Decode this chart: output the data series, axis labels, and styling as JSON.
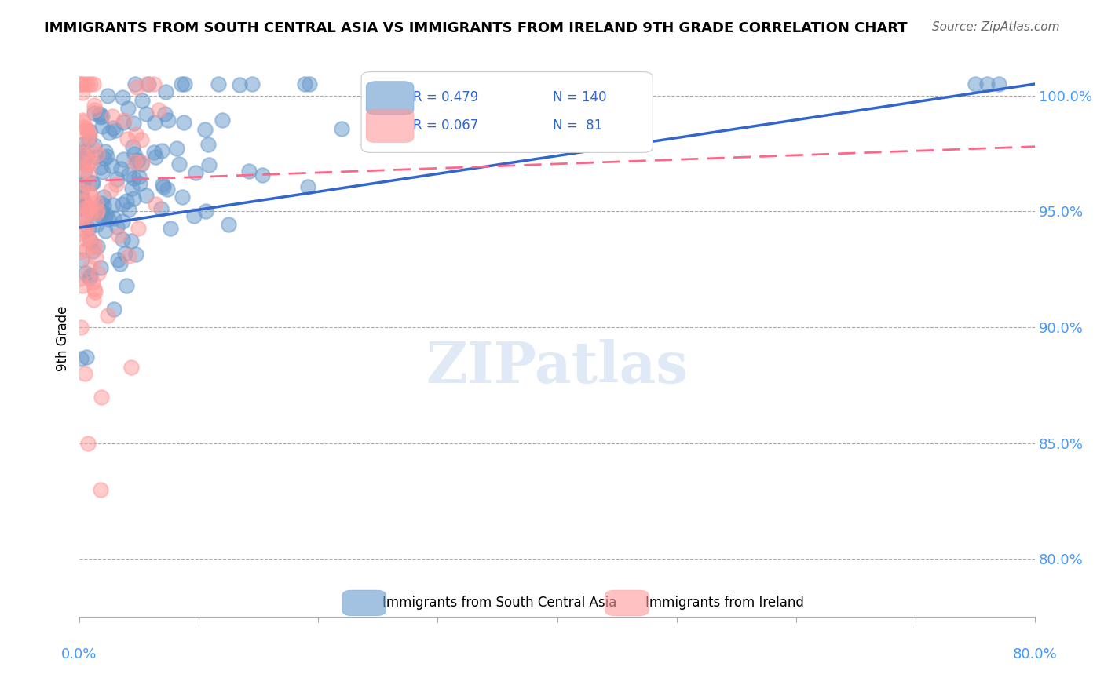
{
  "title": "IMMIGRANTS FROM SOUTH CENTRAL ASIA VS IMMIGRANTS FROM IRELAND 9TH GRADE CORRELATION CHART",
  "source": "Source: ZipAtlas.com",
  "ylabel": "9th Grade",
  "y_tick_labels": [
    "80.0%",
    "85.0%",
    "90.0%",
    "95.0%",
    "100.0%"
  ],
  "y_tick_values": [
    0.8,
    0.85,
    0.9,
    0.95,
    1.0
  ],
  "x_range": [
    0.0,
    0.8
  ],
  "y_range": [
    0.775,
    1.015
  ],
  "blue_R": 0.479,
  "blue_N": 140,
  "pink_R": 0.067,
  "pink_N": 81,
  "blue_color": "#6699CC",
  "pink_color": "#FF9999",
  "blue_line_color": "#3366CC",
  "pink_line_color": "#FF6688",
  "legend_blue_label": "Immigrants from South Central Asia",
  "legend_pink_label": "Immigrants from Ireland",
  "watermark": "ZIPatlas"
}
